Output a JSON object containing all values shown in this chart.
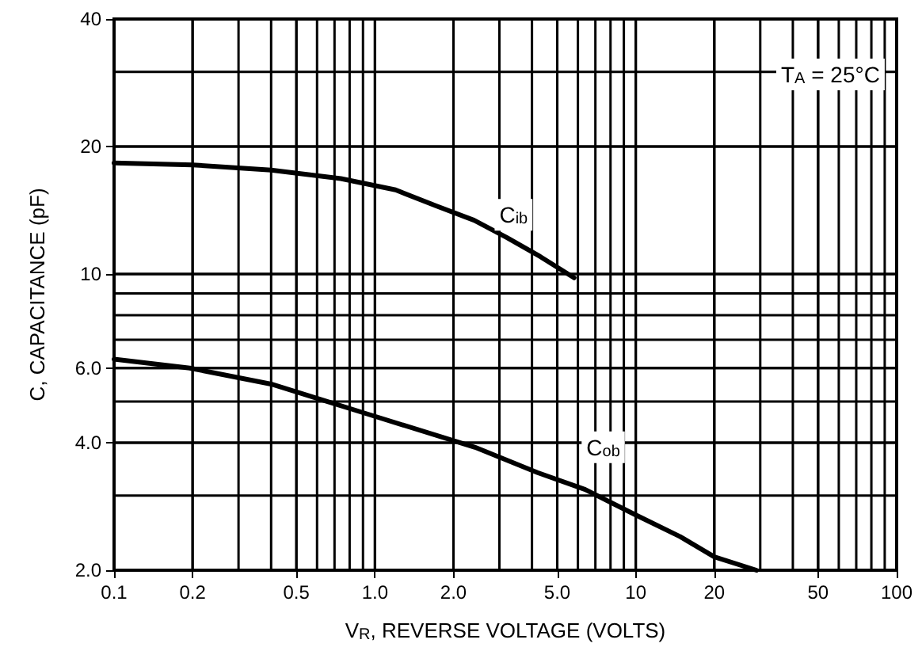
{
  "chart_data": {
    "type": "line",
    "xlabel": "V$_{R}$, REVERSE VOLTAGE (VOLTS)",
    "ylabel": "C, CAPACITANCE (pF)",
    "log": "xy",
    "grid": true,
    "marker": "none",
    "line_style": "solid",
    "xlim": [
      0.1,
      100
    ],
    "ylim": [
      2,
      40
    ],
    "xticks": [
      0.1,
      0.2,
      0.5,
      {
        "value": 1,
        "label": "1.0"
      },
      {
        "value": 2,
        "label": "2.0"
      },
      {
        "value": 5,
        "label": "5.0"
      },
      10,
      20,
      50,
      100
    ],
    "yticks": [
      {
        "value": 2,
        "label": "2.0"
      },
      {
        "value": 4,
        "label": "4.0"
      },
      {
        "value": 6,
        "label": "6.0"
      },
      10,
      20,
      40
    ],
    "series": [
      {
        "color": "#000000",
        "x": [
          0.1,
          0.2,
          0.4,
          0.74,
          1.2,
          1.71,
          2.4,
          3.2,
          4.3,
          5.8
        ],
        "values": [
          18.3,
          18.1,
          17.6,
          16.8,
          15.8,
          14.5,
          13.4,
          12.2,
          11,
          9.8
        ]
      },
      {
        "color": "#000000",
        "x": [
          0.1,
          0.195,
          0.4,
          0.91,
          2.42,
          4.2,
          6.4,
          10,
          14.8,
          20,
          29
        ],
        "values": [
          6.3,
          6.0,
          5.5,
          4.7,
          3.9,
          3.4,
          3.1,
          2.7,
          2.4,
          2.15,
          2.0
        ]
      }
    ],
    "annotations": [
      {
        "text": "C$_{ib}$",
        "x": 3.4,
        "y": 13.8
      },
      {
        "text": "C$_{ob}$",
        "x": 7.5,
        "y": 3.9
      },
      "T$_{A}$ = 25°C"
    ]
  }
}
